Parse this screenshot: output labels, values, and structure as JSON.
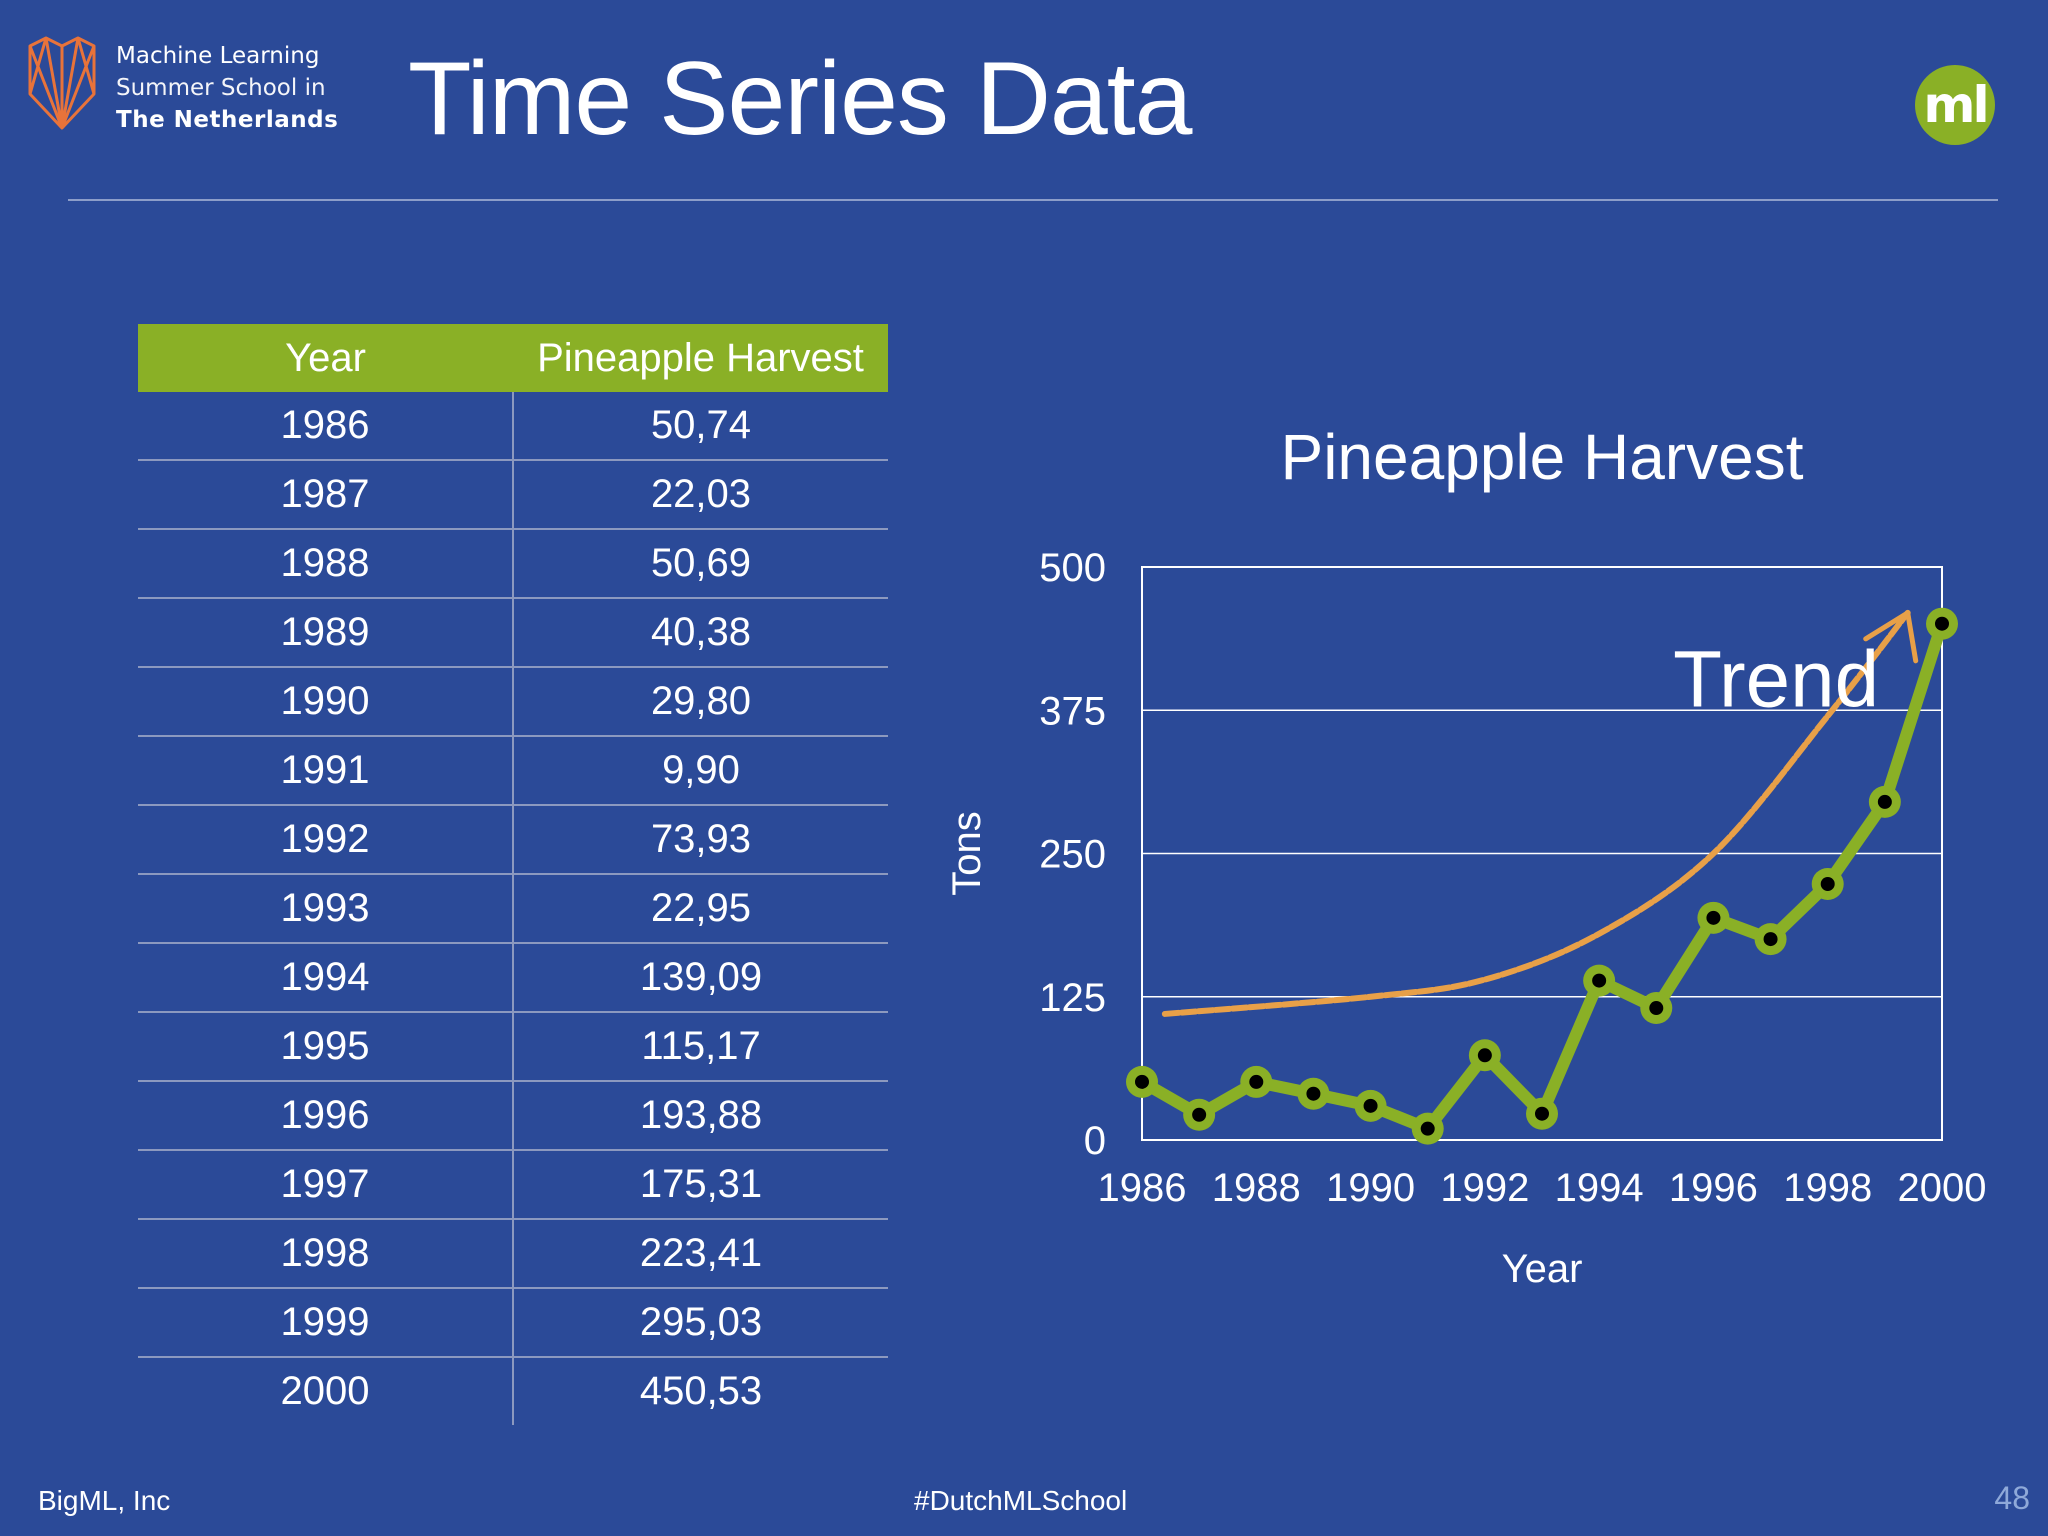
{
  "header": {
    "logo_line1": "Machine Learning",
    "logo_line2": "Summer School in",
    "logo_line3": "The  Netherlands",
    "title": "Time Series Data",
    "badge": "ml"
  },
  "table": {
    "col_year": "Year",
    "col_value": "Pineapple Harvest",
    "rows": [
      {
        "year": "1986",
        "value": "50,74"
      },
      {
        "year": "1987",
        "value": "22,03"
      },
      {
        "year": "1988",
        "value": "50,69"
      },
      {
        "year": "1989",
        "value": "40,38"
      },
      {
        "year": "1990",
        "value": "29,80"
      },
      {
        "year": "1991",
        "value": "9,90"
      },
      {
        "year": "1992",
        "value": "73,93"
      },
      {
        "year": "1993",
        "value": "22,95"
      },
      {
        "year": "1994",
        "value": "139,09"
      },
      {
        "year": "1995",
        "value": "115,17"
      },
      {
        "year": "1996",
        "value": "193,88"
      },
      {
        "year": "1997",
        "value": "175,31"
      },
      {
        "year": "1998",
        "value": "223,41"
      },
      {
        "year": "1999",
        "value": "295,03"
      },
      {
        "year": "2000",
        "value": "450,53"
      }
    ]
  },
  "chart_data": {
    "type": "line",
    "title": "Pineapple Harvest",
    "xlabel": "Year",
    "ylabel": "Tons",
    "x": [
      1986,
      1987,
      1988,
      1989,
      1990,
      1991,
      1992,
      1993,
      1994,
      1995,
      1996,
      1997,
      1998,
      1999,
      2000
    ],
    "values": [
      50.74,
      22.03,
      50.69,
      40.38,
      29.8,
      9.9,
      73.93,
      22.95,
      139.09,
      115.17,
      193.88,
      175.31,
      223.41,
      295.03,
      450.53
    ],
    "xticks": [
      "1986",
      "1988",
      "1990",
      "1992",
      "1994",
      "1996",
      "1998",
      "2000"
    ],
    "yticks": [
      "0",
      "125",
      "250",
      "375",
      "500"
    ],
    "xlim": [
      1986,
      2000
    ],
    "ylim": [
      0,
      500
    ],
    "grid": "horizontal",
    "annotation": "Trend",
    "trend_curve": [
      [
        1986.4,
        110
      ],
      [
        1990,
        125
      ],
      [
        1992,
        140
      ],
      [
        1994,
        180
      ],
      [
        1996,
        250
      ],
      [
        1998,
        370
      ],
      [
        1999.4,
        460
      ]
    ],
    "colors": {
      "series": "#8ab026",
      "marker": "#000000",
      "trend": "#e8a048",
      "grid": "#ffffff"
    }
  },
  "footer": {
    "left": "BigML, Inc",
    "center": "#DutchMLSchool",
    "page": "48"
  }
}
